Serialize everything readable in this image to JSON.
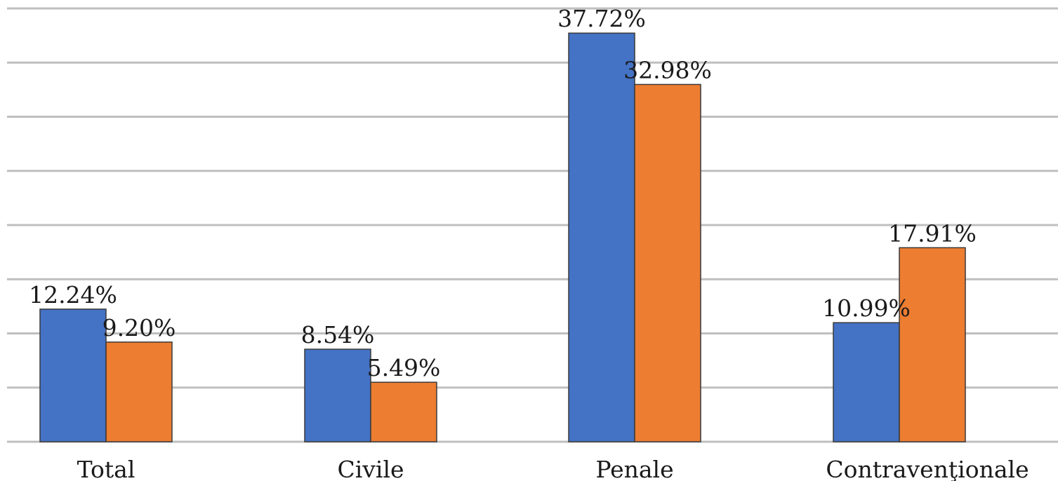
{
  "chart_data": {
    "type": "bar",
    "categories": [
      "Total",
      "Civile",
      "Penale",
      "Contravenţionale"
    ],
    "series": [
      {
        "values": [
          12.24,
          8.54,
          37.72,
          10.99
        ],
        "labels": [
          "12.24%",
          "8.54%",
          "37.72%",
          "10.99%"
        ],
        "color": "#4472c4"
      },
      {
        "values": [
          9.2,
          5.49,
          32.98,
          17.91
        ],
        "labels": [
          "9.20%",
          "5.49%",
          "32.98%",
          "17.91%"
        ],
        "color": "#ed7d31"
      }
    ],
    "ylim": [
      0,
      40
    ],
    "y_grid_step": 5,
    "grid": true,
    "title": "",
    "xlabel": "",
    "ylabel": ""
  }
}
